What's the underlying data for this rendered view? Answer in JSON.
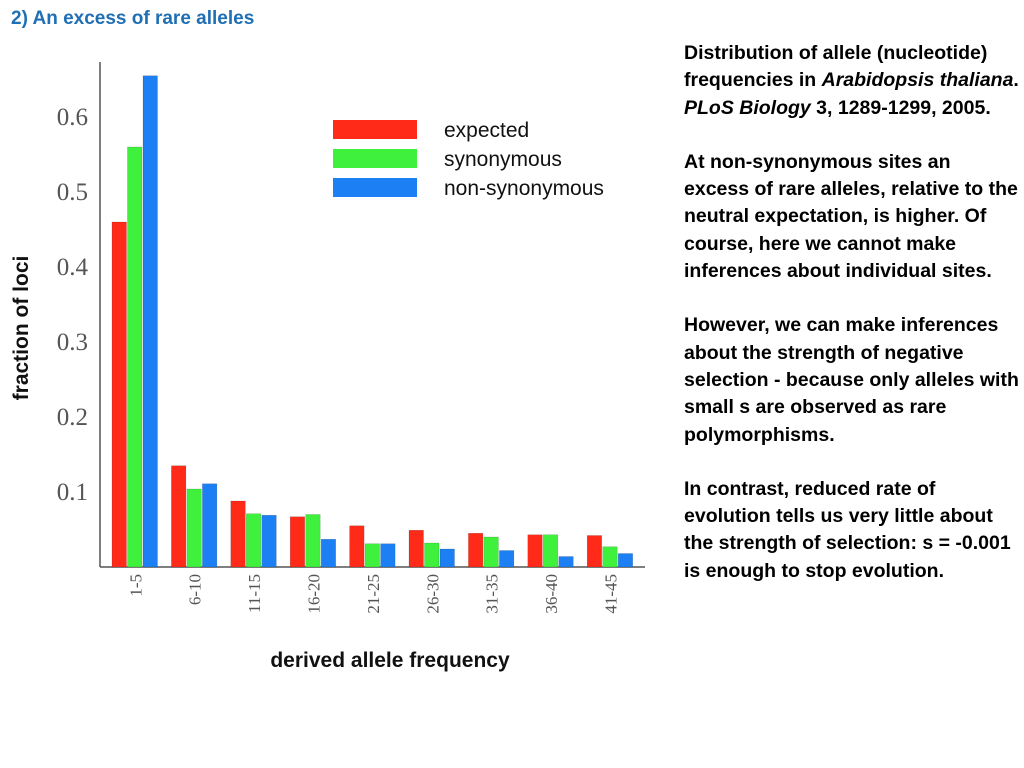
{
  "slide": {
    "title": "2) An excess of rare alleles"
  },
  "notes": {
    "citation_pre": "Distribution of allele (nucleotide) frequencies in ",
    "citation_species": "Arabidopsis thaliana",
    "citation_mid": ". ",
    "citation_journal": "PLoS Biology",
    "citation_post": " 3, 1289-1299, 2005.",
    "paragraph_1": "At non-synonymous sites an excess of rare alleles, relative to the neutral expectation, is higher. Of course, here we cannot make inferences about individual sites.",
    "paragraph_2": "However, we can make inferences about the strength of negative selection - because only alleles with small s are observed as rare polymorphisms.",
    "paragraph_3": "In contrast, reduced rate of evolution tells us very little about the strength of selection: s = -0.001 is enough to stop evolution."
  },
  "chart_data": {
    "type": "bar",
    "xlabel": "derived allele frequency",
    "ylabel": "fraction of loci",
    "ylim": [
      0,
      0.66
    ],
    "yticks": [
      "0.1",
      "0.2",
      "0.3",
      "0.4",
      "0.5",
      "0.6"
    ],
    "legend_position": "top-right",
    "categories": [
      "1-5",
      "6-10",
      "11-15",
      "16-20",
      "21-25",
      "26-30",
      "31-35",
      "36-40",
      "41-45"
    ],
    "series": [
      {
        "name": "expected",
        "color": "#ff2a17",
        "values": [
          0.46,
          0.135,
          0.088,
          0.067,
          0.055,
          0.049,
          0.045,
          0.043,
          0.042
        ]
      },
      {
        "name": "synonymous",
        "color": "#3ff03c",
        "values": [
          0.56,
          0.104,
          0.071,
          0.07,
          0.031,
          0.032,
          0.04,
          0.043,
          0.027
        ]
      },
      {
        "name": "non-synonymous",
        "color": "#1c80f4",
        "values": [
          0.655,
          0.111,
          0.069,
          0.037,
          0.031,
          0.024,
          0.022,
          0.014,
          0.018
        ]
      }
    ]
  }
}
